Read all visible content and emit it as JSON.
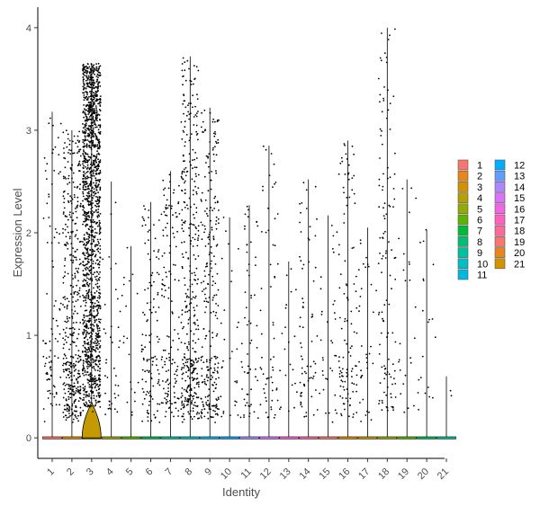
{
  "chart_data": {
    "type": "violin",
    "xlabel": "Identity",
    "ylabel": "Expression Level",
    "ylim": [
      -0.2,
      4.2
    ],
    "yticks": [
      0,
      1,
      2,
      3,
      4
    ],
    "grid": false,
    "legend_placement": "right",
    "categories": [
      "1",
      "2",
      "3",
      "4",
      "5",
      "6",
      "7",
      "8",
      "9",
      "10",
      "11",
      "12",
      "13",
      "14",
      "15",
      "16",
      "17",
      "18",
      "19",
      "20",
      "21"
    ],
    "colors": [
      "#F8766D",
      "#E38900",
      "#C49A00",
      "#99A800",
      "#53B400",
      "#00BC56",
      "#00C094",
      "#00BFC4",
      "#00B6EB",
      "#06A4FF",
      "#A58AFF",
      "#DF70F8",
      "#FB61D7",
      "#FF66A8",
      "#F8766D",
      "#E38900",
      "#C49A00",
      "#99A800",
      "#53B400",
      "#00BC56",
      "#00C094"
    ],
    "legend_colors": [
      "#F8766D",
      "#E7861B",
      "#D39200",
      "#B79F00",
      "#93AA00",
      "#5EB300",
      "#00BA38",
      "#00BF74",
      "#00C19F",
      "#00BFC4",
      "#00B9E3",
      "#00ADFA",
      "#619CFF",
      "#AE87FF",
      "#DB72FB",
      "#F564E3",
      "#FF61C3",
      "#FF699C",
      "#F8766D",
      "#E7861B",
      "#D39200"
    ],
    "max_values": [
      3.18,
      3.0,
      3.65,
      2.5,
      1.87,
      2.3,
      2.6,
      3.72,
      3.22,
      2.15,
      2.27,
      2.85,
      1.72,
      2.52,
      2.17,
      2.9,
      2.05,
      4.0,
      2.52,
      2.03,
      0.6
    ],
    "expressing_counts": [
      90,
      420,
      1500,
      40,
      20,
      120,
      140,
      380,
      260,
      30,
      60,
      60,
      22,
      70,
      35,
      110,
      35,
      120,
      25,
      20,
      2
    ],
    "legend_title": ""
  },
  "legend": {
    "items": [
      "1",
      "2",
      "3",
      "4",
      "5",
      "6",
      "7",
      "8",
      "9",
      "10",
      "11",
      "12",
      "13",
      "14",
      "15",
      "16",
      "17",
      "18",
      "19",
      "20",
      "21"
    ]
  }
}
